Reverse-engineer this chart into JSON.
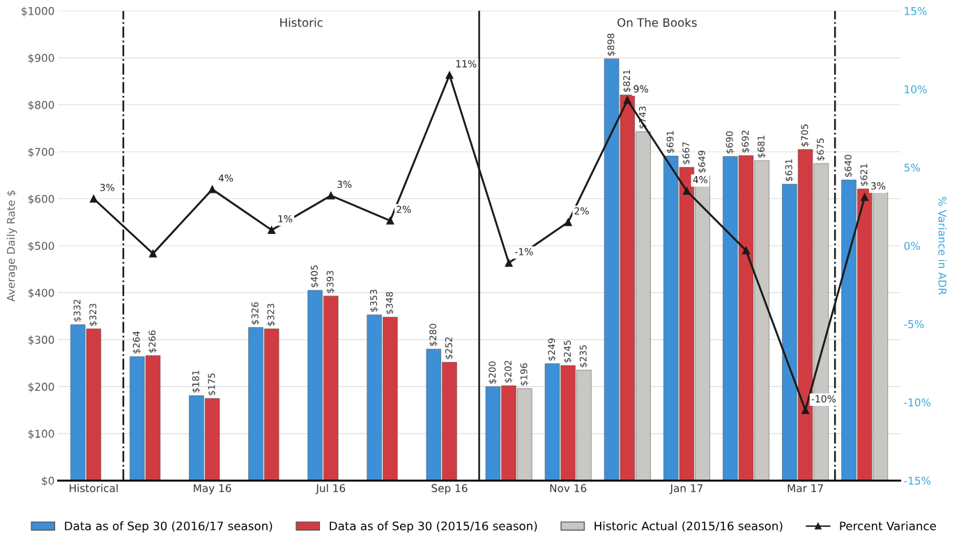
{
  "chart_data": {
    "type": "bar",
    "categories": [
      "Historical",
      null,
      "May 16",
      null,
      "Jul 16",
      null,
      "Sep 16",
      null,
      "Nov 16",
      null,
      "Jan 17",
      null,
      "Mar 17",
      null
    ],
    "ylabel": "Average Daily Rate $",
    "y2label": "% Variance in ADR",
    "ylim": [
      0,
      1000
    ],
    "yticks": [
      {
        "value": 0,
        "label": "$0"
      },
      {
        "value": 100,
        "label": "$100"
      },
      {
        "value": 200,
        "label": "$200"
      },
      {
        "value": 300,
        "label": "$300"
      },
      {
        "value": 400,
        "label": "$400"
      },
      {
        "value": 500,
        "label": "$500"
      },
      {
        "value": 600,
        "label": "$600"
      },
      {
        "value": 700,
        "label": "$700"
      },
      {
        "value": 800,
        "label": "$800"
      },
      {
        "value": 900,
        "label": "$900"
      },
      {
        "value": 1000,
        "label": "$1000"
      }
    ],
    "y2lim": [
      -15,
      15
    ],
    "y2ticks": [
      {
        "value": -15,
        "label": "-15%"
      },
      {
        "value": -10,
        "label": "-10%"
      },
      {
        "value": -5,
        "label": "-5%"
      },
      {
        "value": 0,
        "label": "0%"
      },
      {
        "value": 5,
        "label": "5%"
      },
      {
        "value": 10,
        "label": "10%"
      },
      {
        "value": 15,
        "label": "15%"
      }
    ],
    "series": [
      {
        "name": "Data as of Sep 30 (2016/17 season)",
        "color": "#3d8fd6",
        "values": [
          332,
          264,
          181,
          326,
          405,
          353,
          280,
          200,
          249,
          898,
          691,
          690,
          631,
          640
        ],
        "value_labels": [
          "$332",
          "$264",
          "$181",
          "$326",
          "$405",
          "$353",
          "$280",
          "$200",
          "$249",
          "$898",
          "$691",
          "$690",
          "$631",
          "$640"
        ]
      },
      {
        "name": "Data as of Sep 30 (2015/16 season)",
        "color": "#d13c42",
        "values": [
          323,
          266,
          175,
          323,
          393,
          348,
          252,
          202,
          245,
          821,
          667,
          692,
          705,
          621
        ],
        "value_labels": [
          "$323",
          "$266",
          "$175",
          "$323",
          "$393",
          "$348",
          "$252",
          "$202",
          "$245",
          "$821",
          "$667",
          "$692",
          "$705",
          "$621"
        ]
      },
      {
        "name": "Historic Actual (2015/16 season)",
        "color": "#c9c7c3",
        "values": [
          null,
          null,
          null,
          null,
          null,
          null,
          null,
          196,
          235,
          743,
          649,
          681,
          675,
          614
        ],
        "value_labels": [
          null,
          null,
          null,
          null,
          null,
          null,
          null,
          "$196",
          "$235",
          "$743",
          "$649",
          "$681",
          "$675",
          null
        ]
      },
      {
        "name": "Percent Variance",
        "type": "line",
        "axis": "y2",
        "color": "#1a1a1a",
        "marker": "triangle",
        "line_style": "solid",
        "values": [
          3.0,
          -0.5,
          3.6,
          1.0,
          3.2,
          1.6,
          10.9,
          -1.1,
          1.5,
          9.3,
          3.5,
          -0.3,
          -10.5,
          3.1
        ],
        "value_labels": [
          "3%",
          null,
          "4%",
          "1%",
          "3%",
          "2%",
          "11%",
          "-1%",
          "2%",
          "9%",
          "4%",
          null,
          "-10%",
          "3%"
        ]
      }
    ],
    "annotations": [
      "Historic",
      "On The Books"
    ],
    "grid": "y",
    "legend": "bottom"
  }
}
